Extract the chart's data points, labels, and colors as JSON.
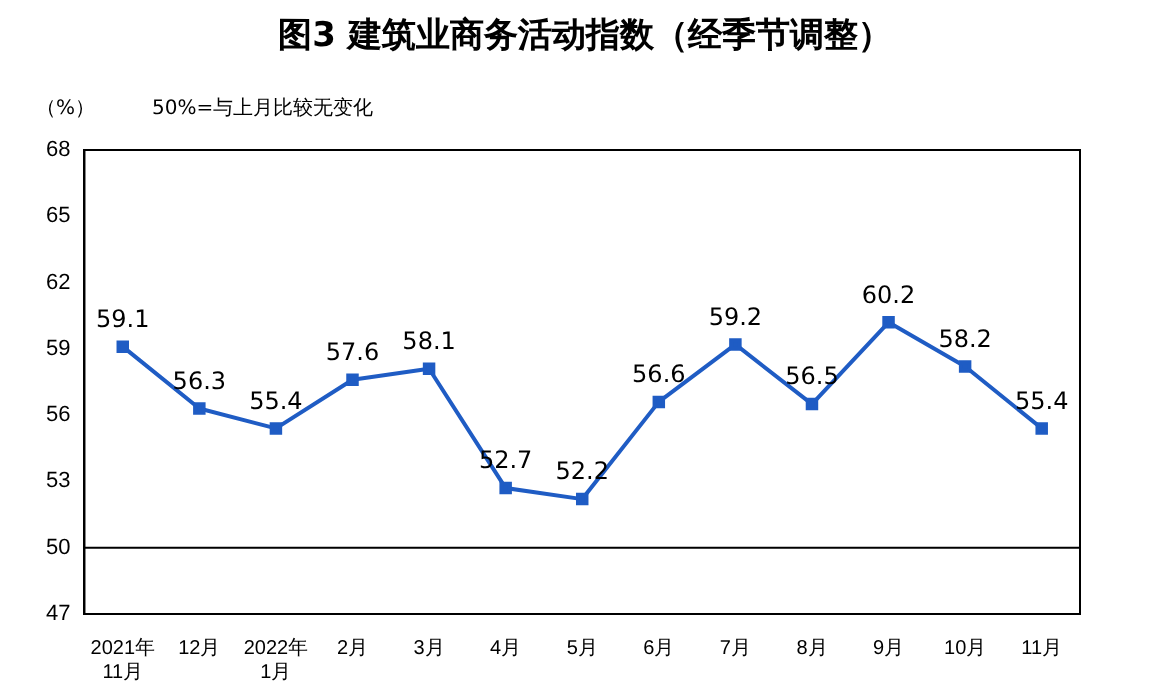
{
  "chart_data": {
    "type": "line",
    "title": "图3  建筑业商务活动指数（经季节调整）",
    "ylabel": "（%）",
    "annotations": [
      "50%=与上月比较无变化"
    ],
    "categories": [
      "2021年\n11月",
      "12月",
      "2022年\n1月",
      "2月",
      "3月",
      "4月",
      "5月",
      "6月",
      "7月",
      "8月",
      "9月",
      "10月",
      "11月"
    ],
    "series": [
      {
        "color": "#1f5cc4",
        "values": [
          59.1,
          56.3,
          55.4,
          57.6,
          58.1,
          52.7,
          52.2,
          56.6,
          59.2,
          56.5,
          60.2,
          58.2,
          55.4
        ]
      }
    ],
    "ylim": [
      47,
      68
    ],
    "yticks": [
      47,
      50,
      53,
      56,
      59,
      62,
      65,
      68
    ],
    "ref_lines": [
      {
        "axis": "y",
        "value": 50,
        "color": "#000000"
      }
    ],
    "data_labels": true,
    "marker": "square",
    "line_style": "solid",
    "grid": false,
    "legend": false
  }
}
